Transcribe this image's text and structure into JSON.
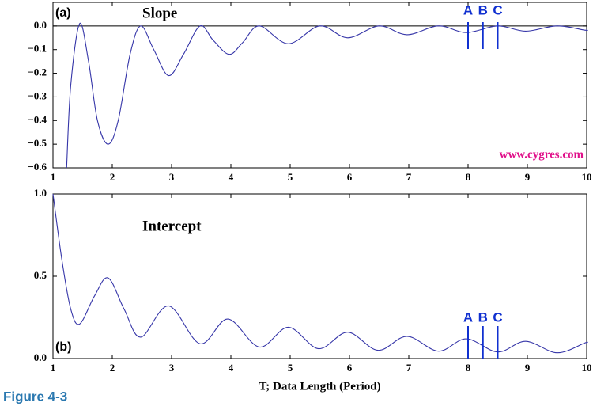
{
  "chart_data": [
    {
      "type": "line",
      "panel_label": "(a)",
      "title": "Slope",
      "annotation": "www.cygres.com",
      "x": [
        1.23,
        1.3,
        1.45,
        1.6,
        1.75,
        1.93,
        2.1,
        2.3,
        2.48,
        2.7,
        2.95,
        3.2,
        3.48,
        3.7,
        3.97,
        4.2,
        4.48,
        4.97,
        5.5,
        5.97,
        6.5,
        6.97,
        7.5,
        7.97,
        8.5,
        8.97,
        9.5,
        9.97,
        10
      ],
      "values": [
        -0.6,
        -0.25,
        0.01,
        -0.15,
        -0.4,
        -0.5,
        -0.4,
        -0.12,
        0.0,
        -0.1,
        -0.21,
        -0.12,
        0.0,
        -0.06,
        -0.12,
        -0.07,
        0.0,
        -0.075,
        0.0,
        -0.05,
        0.0,
        -0.037,
        0.0,
        -0.028,
        0.0,
        -0.022,
        0.0,
        -0.018,
        -0.017
      ],
      "color": "#3535a8",
      "xlim": [
        1,
        10
      ],
      "xticks": [
        1,
        2,
        3,
        4,
        5,
        6,
        7,
        8,
        9,
        10
      ],
      "ylim": [
        -0.6,
        0.1
      ],
      "yticks": [
        {
          "value": -0.6,
          "label": "−0.6"
        },
        {
          "value": -0.5,
          "label": "−0.5"
        },
        {
          "value": -0.4,
          "label": "−0.4"
        },
        {
          "value": -0.3,
          "label": "−0.3"
        },
        {
          "value": -0.2,
          "label": "−0.2"
        },
        {
          "value": -0.1,
          "label": "−0.1"
        },
        {
          "value": 0,
          "label": "0.0"
        }
      ],
      "zero_line": true,
      "markers": [
        {
          "label": "A",
          "x": 8
        },
        {
          "label": "B",
          "x": 8.25
        },
        {
          "label": "C",
          "x": 8.5
        }
      ],
      "marker_color": "#1030d0"
    },
    {
      "type": "line",
      "panel_label": "(b)",
      "title": "Intercept",
      "xlabel": "T; Data Length (Period)",
      "x": [
        1.0,
        1.15,
        1.3,
        1.45,
        1.7,
        1.93,
        2.2,
        2.48,
        2.95,
        3.48,
        3.95,
        4.48,
        4.97,
        5.48,
        5.97,
        6.48,
        6.97,
        7.5,
        7.97,
        8.5,
        8.97,
        9.5,
        9.97,
        10
      ],
      "values": [
        1.0,
        0.6,
        0.3,
        0.21,
        0.38,
        0.49,
        0.3,
        0.13,
        0.32,
        0.09,
        0.24,
        0.07,
        0.19,
        0.06,
        0.16,
        0.05,
        0.135,
        0.045,
        0.12,
        0.04,
        0.105,
        0.035,
        0.095,
        0.095
      ],
      "color": "#3535a8",
      "xlim": [
        1,
        10
      ],
      "xticks": [
        1,
        2,
        3,
        4,
        5,
        6,
        7,
        8,
        9,
        10
      ],
      "ylim": [
        0,
        1.0
      ],
      "yticks": [
        {
          "value": 0,
          "label": "0.0"
        },
        {
          "value": 0.5,
          "label": "0.5"
        },
        {
          "value": 1.0,
          "label": "1.0"
        }
      ],
      "zero_line": false,
      "markers": [
        {
          "label": "A",
          "x": 8
        },
        {
          "label": "B",
          "x": 8.25
        },
        {
          "label": "C",
          "x": 8.5
        }
      ],
      "marker_color": "#1030d0"
    }
  ],
  "caption": "Figure 4-3"
}
